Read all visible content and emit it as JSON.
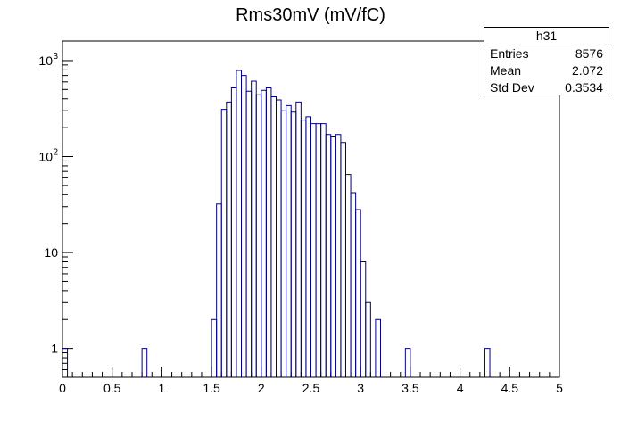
{
  "chart_data": {
    "type": "histogram",
    "title": "Rms30mV (mV/fC)",
    "xlabel": "",
    "ylabel": "",
    "xlim": [
      0,
      5
    ],
    "ylim": [
      0.5,
      1600
    ],
    "ylog": true,
    "bin_width": 0.05,
    "x_ticks": [
      "0",
      "0.5",
      "1",
      "1.5",
      "2",
      "2.5",
      "3",
      "3.5",
      "4",
      "4.5",
      "5"
    ],
    "y_ticks": [
      "1",
      "10",
      "10²",
      "10³"
    ],
    "line_color": "#000080",
    "series": [
      {
        "bins": [
          {
            "x0": 0.0,
            "x1": 0.05,
            "y": 1
          },
          {
            "x0": 0.8,
            "x1": 0.85,
            "y": 1
          },
          {
            "x0": 1.5,
            "x1": 1.55,
            "y": 2
          },
          {
            "x0": 1.55,
            "x1": 1.6,
            "y": 32
          },
          {
            "x0": 1.6,
            "x1": 1.65,
            "y": 310
          },
          {
            "x0": 1.65,
            "x1": 1.7,
            "y": 370
          },
          {
            "x0": 1.7,
            "x1": 1.75,
            "y": 520
          },
          {
            "x0": 1.75,
            "x1": 1.8,
            "y": 790
          },
          {
            "x0": 1.8,
            "x1": 1.85,
            "y": 700
          },
          {
            "x0": 1.85,
            "x1": 1.9,
            "y": 480
          },
          {
            "x0": 1.9,
            "x1": 1.95,
            "y": 610
          },
          {
            "x0": 1.95,
            "x1": 2.0,
            "y": 440
          },
          {
            "x0": 2.0,
            "x1": 2.05,
            "y": 490
          },
          {
            "x0": 2.05,
            "x1": 2.1,
            "y": 520
          },
          {
            "x0": 2.1,
            "x1": 2.15,
            "y": 420
          },
          {
            "x0": 2.15,
            "x1": 2.2,
            "y": 390
          },
          {
            "x0": 2.2,
            "x1": 2.25,
            "y": 300
          },
          {
            "x0": 2.25,
            "x1": 2.3,
            "y": 340
          },
          {
            "x0": 2.3,
            "x1": 2.35,
            "y": 290
          },
          {
            "x0": 2.35,
            "x1": 2.4,
            "y": 370
          },
          {
            "x0": 2.4,
            "x1": 2.45,
            "y": 240
          },
          {
            "x0": 2.45,
            "x1": 2.5,
            "y": 260
          },
          {
            "x0": 2.5,
            "x1": 2.55,
            "y": 220
          },
          {
            "x0": 2.55,
            "x1": 2.6,
            "y": 220
          },
          {
            "x0": 2.6,
            "x1": 2.65,
            "y": 220
          },
          {
            "x0": 2.65,
            "x1": 2.7,
            "y": 170
          },
          {
            "x0": 2.7,
            "x1": 2.75,
            "y": 160
          },
          {
            "x0": 2.75,
            "x1": 2.8,
            "y": 170
          },
          {
            "x0": 2.8,
            "x1": 2.85,
            "y": 140
          },
          {
            "x0": 2.85,
            "x1": 2.9,
            "y": 65
          },
          {
            "x0": 2.9,
            "x1": 2.95,
            "y": 42
          },
          {
            "x0": 2.95,
            "x1": 3.0,
            "y": 28
          },
          {
            "x0": 3.0,
            "x1": 3.05,
            "y": 8
          },
          {
            "x0": 3.05,
            "x1": 3.1,
            "y": 3
          },
          {
            "x0": 3.15,
            "x1": 3.2,
            "y": 2
          },
          {
            "x0": 3.45,
            "x1": 3.5,
            "y": 1
          },
          {
            "x0": 4.25,
            "x1": 4.3,
            "y": 1
          }
        ]
      }
    ]
  },
  "stats": {
    "name": "h31",
    "entries_label": "Entries",
    "entries_value": "8576",
    "mean_label": "Mean",
    "mean_value": "2.072",
    "stddev_label": "Std Dev",
    "stddev_value": "0.3534"
  }
}
